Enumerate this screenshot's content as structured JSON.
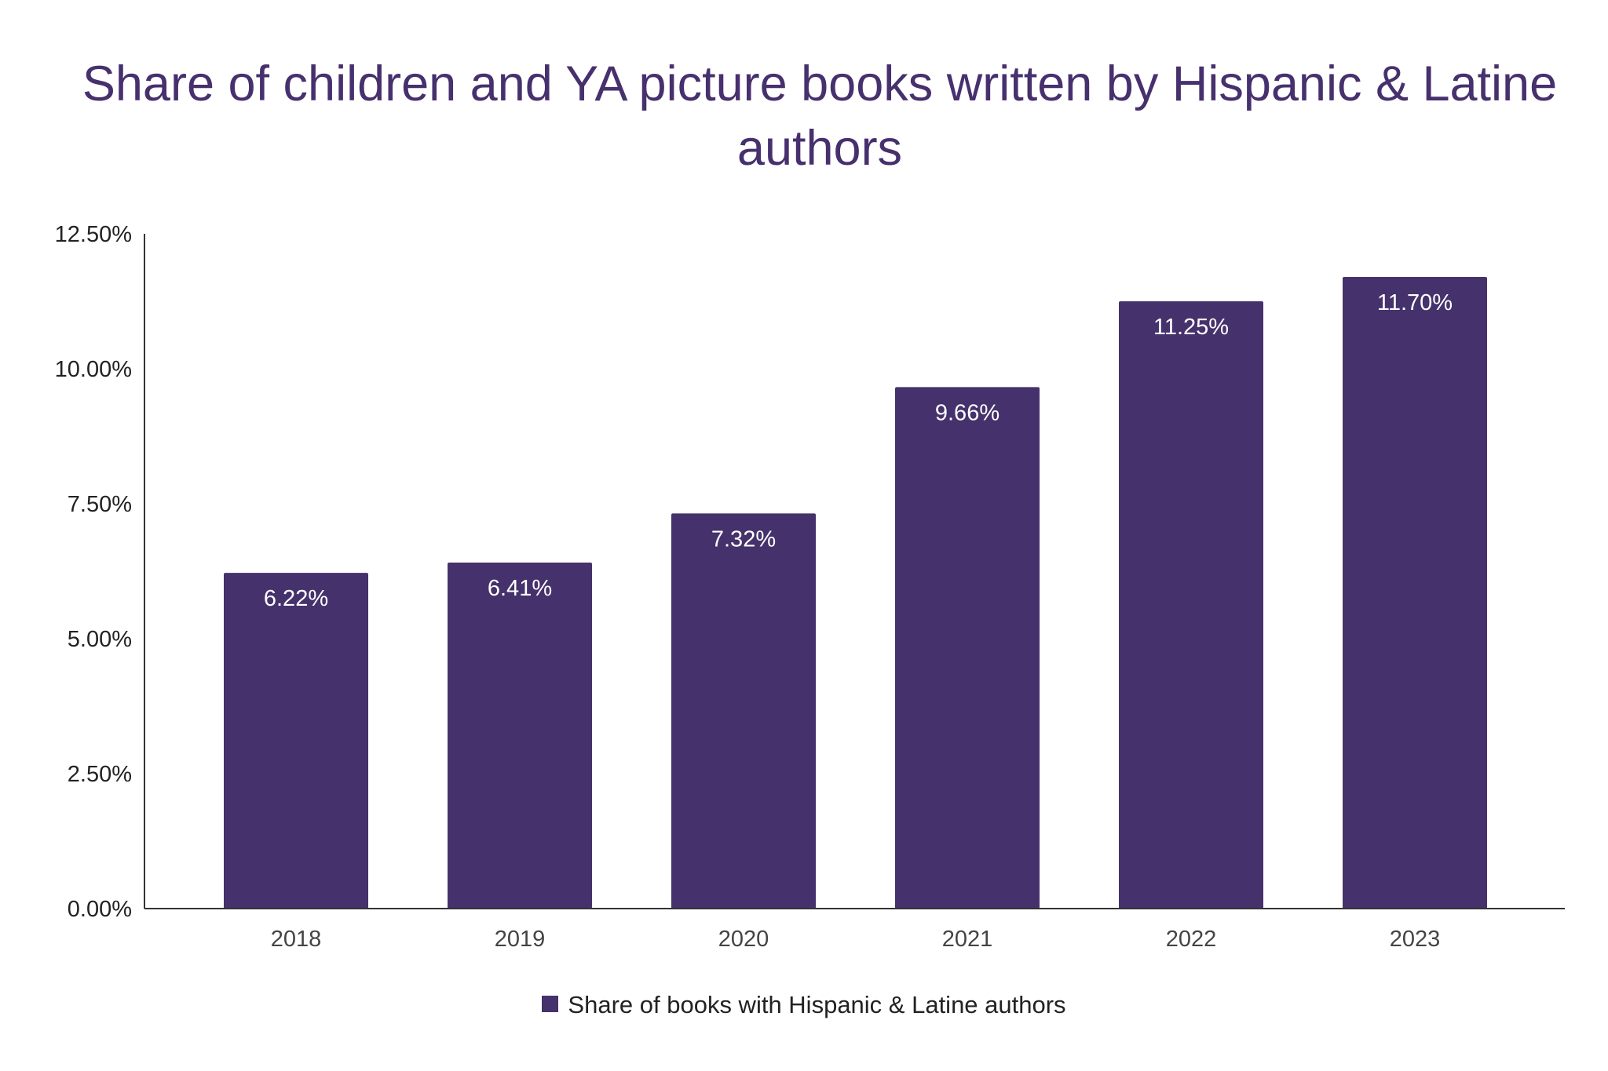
{
  "chart_data": {
    "type": "bar",
    "title": "Share of children and YA picture books written by Hispanic & Latine authors",
    "categories": [
      "2018",
      "2019",
      "2020",
      "2021",
      "2022",
      "2023"
    ],
    "series": [
      {
        "name": "Share of books with Hispanic & Latine authors",
        "values": [
          6.22,
          6.41,
          7.32,
          9.66,
          11.25,
          11.7
        ],
        "color": "#45316b"
      }
    ],
    "data_labels": [
      "6.22%",
      "6.41%",
      "7.32%",
      "9.66%",
      "11.25%",
      "11.70%"
    ],
    "ylim": [
      0,
      12.5
    ],
    "yticks": [
      0,
      2.5,
      5,
      7.5,
      10,
      12.5
    ],
    "ytick_labels": [
      "0.00%",
      "2.50%",
      "5.00%",
      "7.50%",
      "10.00%",
      "12.50%"
    ],
    "xlabel": "",
    "ylabel": "",
    "grid": false,
    "legend_position": "bottom"
  }
}
